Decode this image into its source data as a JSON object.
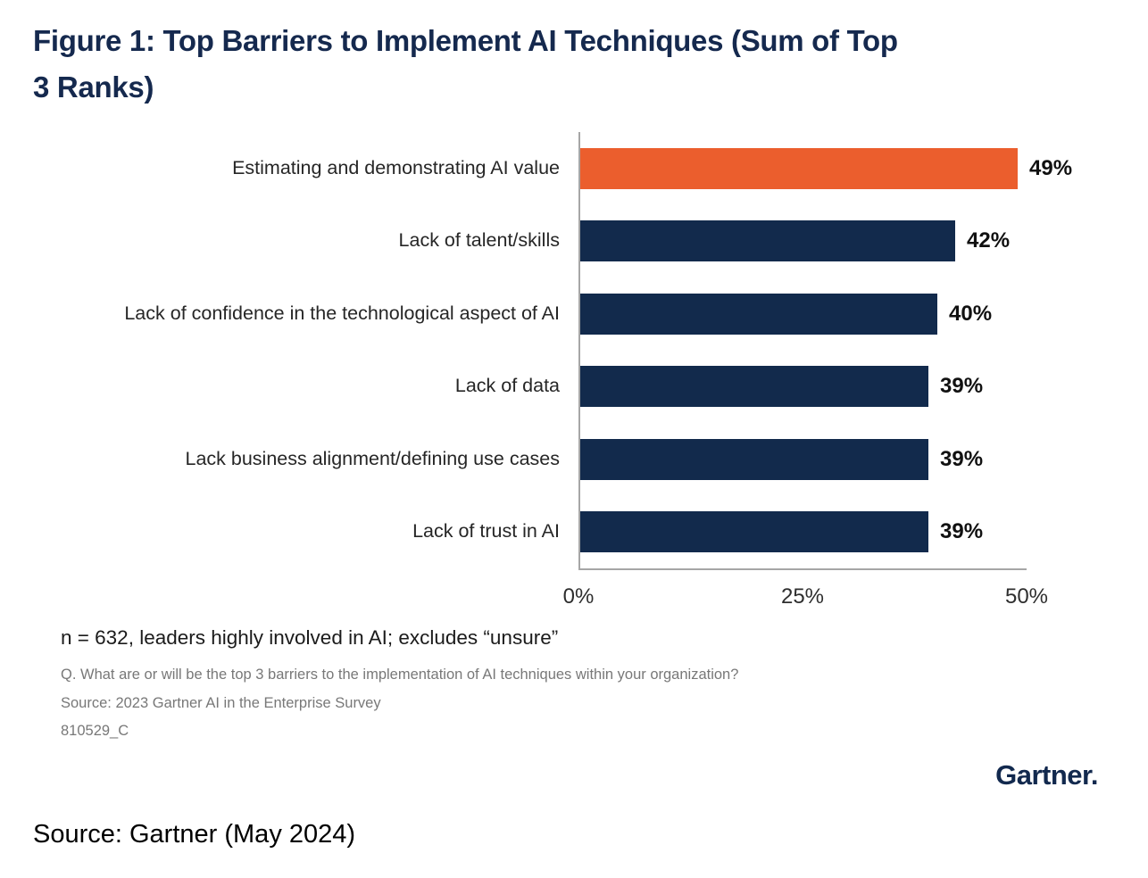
{
  "header": {
    "title_line1": "Figure 1: Top Barriers to Implement AI Techniques (Sum of Top",
    "title_line2": "3 Ranks)"
  },
  "chart_data": {
    "type": "bar",
    "orientation": "horizontal",
    "title": "Figure 1: Top Barriers to Implement AI Techniques (Sum of Top 3 Ranks)",
    "categories": [
      "Estimating and demonstrating AI value",
      "Lack of talent/skills",
      "Lack of confidence in the technological aspect of AI",
      "Lack of data",
      "Lack business alignment/defining use cases",
      "Lack of trust in AI"
    ],
    "values": [
      49,
      42,
      40,
      39,
      39,
      39
    ],
    "value_labels": [
      "49%",
      "42%",
      "40%",
      "39%",
      "39%",
      "39%"
    ],
    "bar_colors": [
      "#EB5E2D",
      "#122A4C",
      "#122A4C",
      "#122A4C",
      "#122A4C",
      "#122A4C"
    ],
    "xlabel": "",
    "ylabel": "",
    "xlim": [
      0,
      50
    ],
    "x_ticks": [
      "0%",
      "25%",
      "50%"
    ],
    "grid": false,
    "legend": false
  },
  "footnotes": {
    "sample_note": "n = 632, leaders highly involved in AI; excludes “unsure”",
    "question": "Q. What are or will be the top 3 barriers to the implementation of AI techniques within your organization?",
    "survey_source": "Source: 2023 Gartner AI in the Enterprise Survey",
    "doc_id": "810529_C"
  },
  "branding": {
    "logo_text": "Gartner",
    "logo_mark": "."
  },
  "footer": {
    "source_line": "Source: Gartner (May 2024)"
  },
  "colors": {
    "accent_orange": "#EB5E2D",
    "bar_navy": "#122A4C",
    "title_navy": "#15294E",
    "muted_gray": "#787878",
    "axis_gray": "#A6A6A6"
  }
}
